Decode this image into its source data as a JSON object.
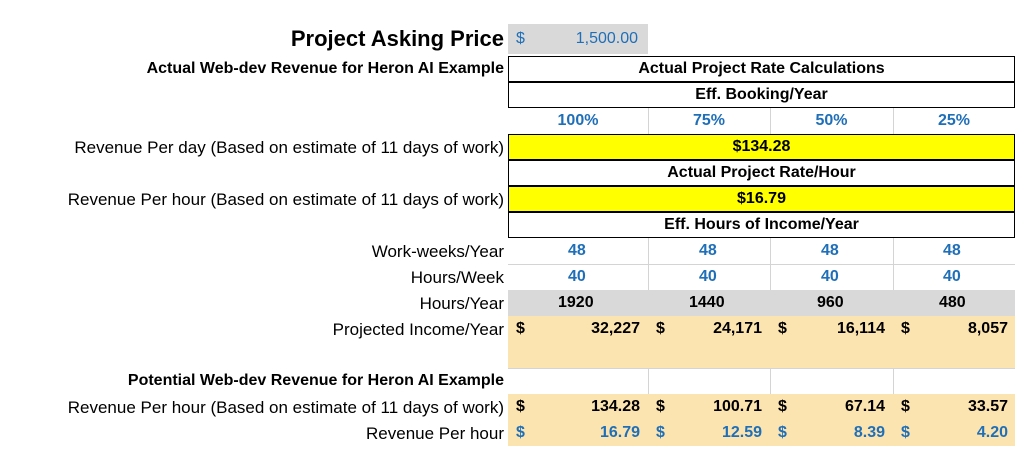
{
  "header": {
    "asking_price_label": "Project Asking Price",
    "asking_price_currency": "$",
    "asking_price_value": "1,500.00",
    "actual_section_title": "Actual Web-dev Revenue for Heron AI Example",
    "actual_rate_title": "Actual Project Rate Calculations",
    "booking_title": "Eff. Booking/Year"
  },
  "booking_percents": [
    "100%",
    "75%",
    "50%",
    "25%"
  ],
  "revenue_per_day": {
    "label": "Revenue Per day (Based on estimate of 11 days of work)",
    "value": "$134.28"
  },
  "rate_hour_title": "Actual Project Rate/Hour",
  "revenue_per_hour": {
    "label": "Revenue Per hour (Based on estimate of 11 days of work)",
    "value": "$16.79"
  },
  "hours_income_title": "Eff. Hours of Income/Year",
  "work_weeks": {
    "label": "Work-weeks/Year",
    "values": [
      "48",
      "48",
      "48",
      "48"
    ]
  },
  "hours_week": {
    "label": "Hours/Week",
    "values": [
      "40",
      "40",
      "40",
      "40"
    ]
  },
  "hours_year": {
    "label": "Hours/Year",
    "values": [
      "1920",
      "1440",
      "960",
      "480"
    ]
  },
  "projected_income": {
    "label": "Projected Income/Year",
    "currency": "$",
    "values": [
      "32,227",
      "24,171",
      "16,114",
      "8,057"
    ]
  },
  "potential_section_title": "Potential Web-dev Revenue for Heron AI Example",
  "potential_rev_hour_est": {
    "label": "Revenue Per hour (Based on estimate of 11 days of work)",
    "currency": "$",
    "values": [
      "134.28",
      "100.71",
      "67.14",
      "33.57"
    ]
  },
  "potential_rev_hour": {
    "label": "Revenue Per hour",
    "currency": "$",
    "values": [
      "16.79",
      "12.59",
      "8.39",
      "4.20"
    ]
  },
  "colors": {
    "highlight_yellow": "#ffff00",
    "gray_fill": "#d9d9d9",
    "tan_fill": "#fce4b0",
    "blue_text": "#1f6fb8"
  }
}
